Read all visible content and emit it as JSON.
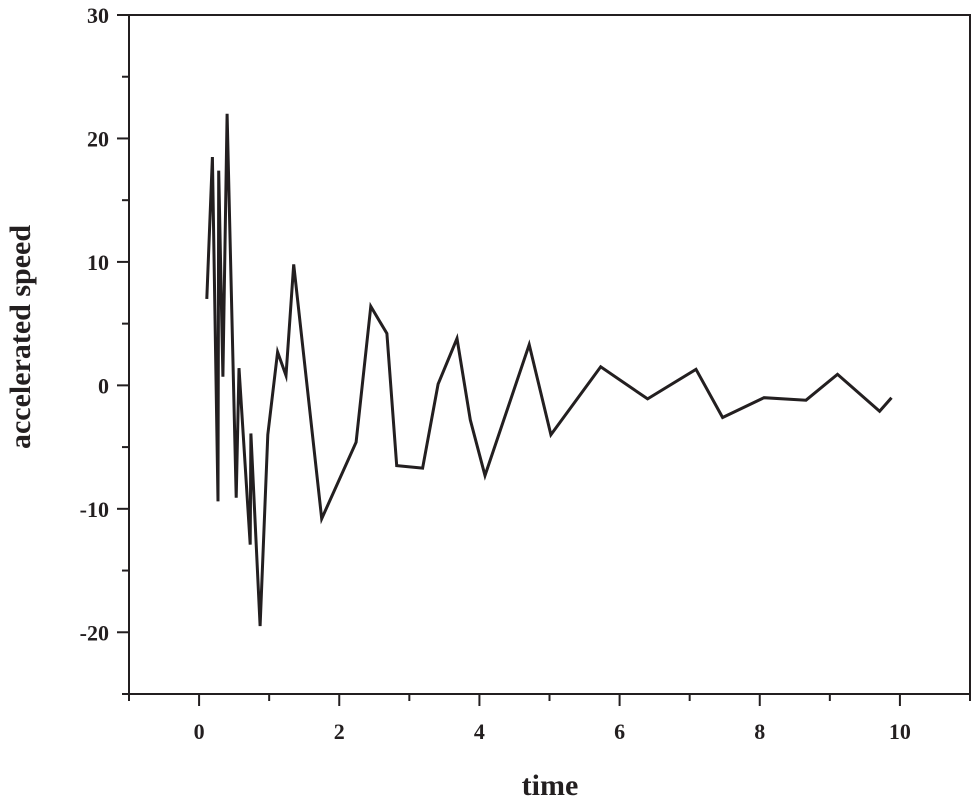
{
  "chart_data": {
    "type": "line",
    "title": "",
    "xlabel": "time",
    "ylabel": "accelerated speed",
    "xlim": [
      -1,
      11
    ],
    "ylim": [
      -25,
      30
    ],
    "x_ticks": [
      0,
      2,
      4,
      6,
      8,
      10
    ],
    "x_tick_labels": [
      "0",
      "2",
      "4",
      "6",
      "8",
      "10"
    ],
    "x_minor_ticks": [
      -1,
      1,
      3,
      5,
      7,
      9,
      11
    ],
    "y_ticks": [
      -20,
      -10,
      0,
      10,
      20,
      30
    ],
    "y_tick_labels": [
      "-20",
      "-10",
      "0",
      "10",
      "20",
      "30"
    ],
    "y_minor_ticks": [
      -25,
      -15,
      -5,
      5,
      15,
      25
    ],
    "grid": false,
    "legend": null,
    "line_color": "#231f20",
    "series": [
      {
        "name": "accelerated speed",
        "x": [
          0.11,
          0.19,
          0.27,
          0.28,
          0.34,
          0.4,
          0.53,
          0.57,
          0.73,
          0.74,
          0.87,
          0.98,
          1.12,
          1.24,
          1.35,
          1.75,
          2.24,
          2.45,
          2.68,
          2.82,
          3.19,
          3.41,
          3.68,
          3.87,
          4.08,
          4.71,
          5.02,
          5.73,
          6.4,
          7.09,
          7.47,
          8.06,
          8.66,
          9.11,
          9.71,
          9.88
        ],
        "values": [
          7.0,
          18.5,
          -9.4,
          17.4,
          0.7,
          22.0,
          -9.1,
          1.4,
          -12.9,
          -3.9,
          -19.5,
          -4.0,
          2.7,
          0.8,
          9.8,
          -10.8,
          -4.6,
          6.4,
          4.2,
          -6.5,
          -6.7,
          0.1,
          3.8,
          -2.8,
          -7.3,
          3.3,
          -4.0,
          1.5,
          -1.1,
          1.3,
          -2.6,
          -1.0,
          -1.2,
          0.9,
          -2.1,
          -1.0
        ]
      }
    ]
  }
}
